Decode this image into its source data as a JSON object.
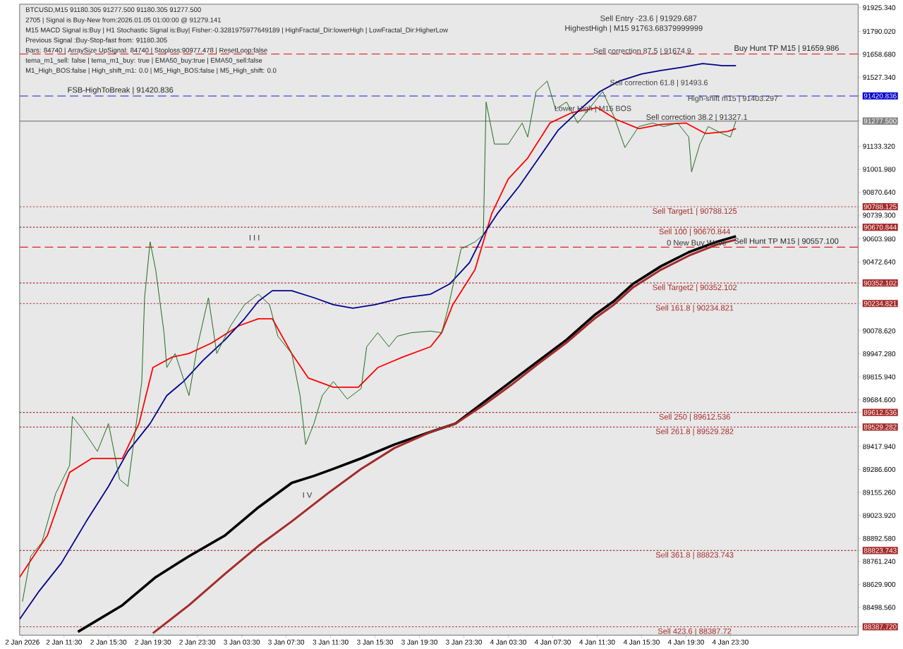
{
  "chart_data": {
    "type": "line",
    "annotations": [
      "BTCUSD,M15  91180.305 91277.500 91180.305 91277.500",
      "2705 | Signal is Buy-New from:2026.01.05 01:00:00 @ 91279.141",
      "M15 MACD Signal is:Buy | H1 Stochastic Signal is:Buy| Fisher:-0.3281975977649189 | HighFractal_Dir:lowerHigh | LowFractal_Dir:HigherLow",
      "Previous Signal :Buy-Stop-fast from: 91180.305",
      "Bars: 84740 | ArraySize UpSignal: 84740 | Stoploss:90977.478 | ResetLoop:false",
      "tema_m1_sell: false | tema_m1_buy: true | EMA50_buy:true | EMA50_sell:false",
      "M1_High_BOS:false | High_shift_m1: 0.0 | M5_High_BOS:false | M5_High_shift: 0.0",
      "Sell Entry -23.6 | 91929.687",
      "HighestHigh | M15 91763.68379999999",
      "0 New Buy Wave",
      "I I I",
      "I V",
      {
        "text": "Sell correction 87.5 | 91674.9",
        "x": "2026-01-04T11:00",
        "y": 91674.9
      },
      {
        "text": "Sell correction 61.8 | 91493.6",
        "x": "2026-01-04T12:30",
        "y": 91493.6
      },
      "Sell correction 38.2 | 91327.1",
      {
        "text": "Lower High | M15 BOS",
        "x": "2026-01-04T07:30",
        "y": 91346
      },
      {
        "text": "High-shift m15 | 91403.297",
        "x": "2026-01-04T19:30",
        "y": 91403.297
      }
    ],
    "xlim": [
      "2026-01-02T07:30",
      "2026-01-05T11:00"
    ],
    "ylim": [
      88340,
      91945
    ],
    "xticks": [
      {
        "value": "2026-01-02T07:45",
        "label": "2 Jan 2026"
      },
      {
        "value": "2026-01-02T11:30",
        "label": "2 Jan 11:30"
      },
      {
        "value": "2026-01-02T15:30",
        "label": "2 Jan 15:30"
      },
      {
        "value": "2026-01-02T19:30",
        "label": "2 Jan 19:30"
      },
      {
        "value": "2026-01-02T23:30",
        "label": "2 Jan 23:30"
      },
      {
        "value": "2026-01-03T03:30",
        "label": "3 Jan 03:30"
      },
      {
        "value": "2026-01-03T07:30",
        "label": "3 Jan 07:30"
      },
      {
        "value": "2026-01-03T11:30",
        "label": "3 Jan 11:30"
      },
      {
        "value": "2026-01-03T15:30",
        "label": "3 Jan 15:30"
      },
      {
        "value": "2026-01-03T19:30",
        "label": "3 Jan 19:30"
      },
      {
        "value": "2026-01-03T23:30",
        "label": "3 Jan 23:30"
      },
      {
        "value": "2026-01-04T03:30",
        "label": "4 Jan 03:30"
      },
      {
        "value": "2026-01-04T07:30",
        "label": "4 Jan 07:30"
      },
      {
        "value": "2026-01-04T11:30",
        "label": "4 Jan 11:30"
      },
      {
        "value": "2026-01-04T15:30",
        "label": "4 Jan 15:30"
      },
      {
        "value": "2026-01-04T19:30",
        "label": "4 Jan 19:30"
      },
      {
        "value": "2026-01-04T23:30",
        "label": "4 Jan 23:30"
      }
    ],
    "yticks": [
      {
        "value": 91925.34,
        "label": "91925.340"
      },
      {
        "value": 91790.02,
        "label": "91790.020"
      },
      {
        "value": 91658.68,
        "label": "91658.680"
      },
      {
        "value": 91527.34,
        "label": "91527.340"
      },
      {
        "value": 91420.836,
        "label": "91420.836"
      },
      {
        "value": 91277.5,
        "label": "91277.500"
      },
      {
        "value": 91133.32,
        "label": "91133.320"
      },
      {
        "value": 91001.98,
        "label": "91001.980"
      },
      {
        "value": 90870.64,
        "label": "90870.640"
      },
      {
        "value": 90788.125,
        "label": "90788.125"
      },
      {
        "value": 90739.3,
        "label": "90739.300"
      },
      {
        "value": 90670.844,
        "label": "90670.844"
      },
      {
        "value": 90603.98,
        "label": "90603.980"
      },
      {
        "value": 90472.64,
        "label": "90472.640"
      },
      {
        "value": 90352.102,
        "label": "90352.102"
      },
      {
        "value": 90234.821,
        "label": "90234.821"
      },
      {
        "value": 90078.62,
        "label": "90078.620"
      },
      {
        "value": 89947.28,
        "label": "89947.280"
      },
      {
        "value": 89815.94,
        "label": "89815.940"
      },
      {
        "value": 89684.6,
        "label": "89684.600"
      },
      {
        "value": 89612.536,
        "label": "89612.536"
      },
      {
        "value": 89529.282,
        "label": "89529.282"
      },
      {
        "value": 89417.94,
        "label": "89417.940"
      },
      {
        "value": 89286.6,
        "label": "89286.600"
      },
      {
        "value": 89155.26,
        "label": "89155.260"
      },
      {
        "value": 89023.92,
        "label": "89023.920"
      },
      {
        "value": 88892.58,
        "label": "88892.580"
      },
      {
        "value": 88823.743,
        "label": "88823.743"
      },
      {
        "value": 88761.24,
        "label": "88761.240"
      },
      {
        "value": 88629.9,
        "label": "88629.900"
      },
      {
        "value": 88498.56,
        "label": "88498.560"
      },
      {
        "value": 88387.72,
        "label": "88387.720"
      }
    ],
    "ref_lines": [
      {
        "axis": "y",
        "value": 91420.836,
        "label": "FSB-HighToBreak | 91420.836",
        "color": "#0000cd",
        "line_style": "dashed"
      },
      {
        "axis": "y",
        "value": 91277.5,
        "color": "#808080",
        "line_style": "solid"
      },
      {
        "axis": "y",
        "value": 91659.986,
        "label": "Buy Hunt TP M15 | 91659.986",
        "color": "#e02020",
        "line_style": "dashed"
      },
      {
        "axis": "y",
        "value": 90557.1,
        "label": "Sell Hunt TP M15 | 90557.100",
        "color": "#e02020",
        "line_style": "dashed"
      },
      {
        "axis": "y",
        "value": 90788.125,
        "label": "Sell Target1 | 90788.125",
        "color": "#a52a2a",
        "line_style": "dotted"
      },
      {
        "axis": "y",
        "value": 90670.844,
        "label": "Sell 100 | 90670.844",
        "color": "#a52a2a",
        "line_style": "dotted"
      },
      {
        "axis": "y",
        "value": 90352.102,
        "label": "Sell Target2 | 90352.102",
        "color": "#a52a2a",
        "line_style": "dotted"
      },
      {
        "axis": "y",
        "value": 90234.821,
        "label": "Sell 161.8 | 90234.821",
        "color": "#a52a2a",
        "line_style": "dotted"
      },
      {
        "axis": "y",
        "value": 89612.536,
        "label": "Sell 250 | 89612.536",
        "color": "#a52a2a",
        "line_style": "dotted"
      },
      {
        "axis": "y",
        "value": 89529.282,
        "label": "Sell 261.8 | 89529.282",
        "color": "#a52a2a",
        "line_style": "dotted"
      },
      {
        "axis": "y",
        "value": 88823.743,
        "label": "Sell 361.8 | 88823.743",
        "color": "#a52a2a",
        "line_style": "dotted"
      },
      {
        "axis": "y",
        "value": 88387.72,
        "label": "Sell 423.6 | 88387.72",
        "color": "#a52a2a",
        "line_style": "dotted"
      }
    ],
    "series": [
      {
        "color": "#1e6b1e",
        "x": [
          "2026-01-02T07:45",
          "2026-01-02T08:30",
          "2026-01-02T09:30",
          "2026-01-02T10:45",
          "2026-01-02T12:00",
          "2026-01-02T12:15",
          "2026-01-02T13:15",
          "2026-01-02T14:30",
          "2026-01-02T15:30",
          "2026-01-02T16:30",
          "2026-01-02T17:15",
          "2026-01-02T18:00",
          "2026-01-02T18:30",
          "2026-01-02T18:45",
          "2026-01-02T19:15",
          "2026-01-02T19:45",
          "2026-01-02T20:30",
          "2026-01-02T20:45",
          "2026-01-02T21:30",
          "2026-01-02T22:45",
          "2026-01-02T23:30",
          "2026-01-03T00:30",
          "2026-01-03T01:15",
          "2026-01-03T02:30",
          "2026-01-03T03:45",
          "2026-01-03T05:00",
          "2026-01-03T06:00",
          "2026-01-03T06:45",
          "2026-01-03T08:00",
          "2026-01-03T08:45",
          "2026-01-03T09:15",
          "2026-01-03T10:00",
          "2026-01-03T10:45",
          "2026-01-03T11:45",
          "2026-01-03T13:00",
          "2026-01-03T14:15",
          "2026-01-03T14:45",
          "2026-01-03T15:45",
          "2026-01-03T16:45",
          "2026-01-03T17:30",
          "2026-01-03T18:45",
          "2026-01-03T20:30",
          "2026-01-03T21:30",
          "2026-01-03T22:00",
          "2026-01-03T23:15",
          "2026-01-04T00:30",
          "2026-01-04T01:15",
          "2026-01-04T01:30",
          "2026-01-04T02:15",
          "2026-01-04T03:30",
          "2026-01-04T04:45",
          "2026-01-04T05:15",
          "2026-01-04T06:00",
          "2026-01-04T07:00",
          "2026-01-04T07:45",
          "2026-01-04T08:45",
          "2026-01-04T09:45",
          "2026-01-04T10:45",
          "2026-01-04T12:00",
          "2026-01-04T13:00",
          "2026-01-04T14:00",
          "2026-01-04T15:15",
          "2026-01-04T16:30",
          "2026-01-04T17:30",
          "2026-01-04T18:45",
          "2026-01-04T19:45",
          "2026-01-04T20:00",
          "2026-01-04T20:45",
          "2026-01-04T21:30",
          "2026-01-04T22:45",
          "2026-01-04T23:30",
          "2026-01-05T00:00"
        ],
        "values": [
          88531,
          88791,
          88870,
          89150,
          89310,
          89589,
          89509,
          89390,
          89549,
          89230,
          89190,
          89549,
          89789,
          90268,
          90587,
          90428,
          90068,
          89869,
          89949,
          89709,
          89988,
          90268,
          89949,
          90108,
          90228,
          90288,
          90228,
          90048,
          89949,
          89709,
          89429,
          89549,
          89709,
          89789,
          89689,
          89749,
          89988,
          90068,
          89988,
          90048,
          90068,
          90077,
          90068,
          90188,
          90547,
          90587,
          90627,
          91386,
          91146,
          91146,
          91266,
          91186,
          91446,
          91506,
          91346,
          91386,
          91266,
          91346,
          91446,
          91306,
          91126,
          91246,
          91266,
          91246,
          91266,
          91186,
          90987,
          91146,
          91246,
          91206,
          91186,
          91278
        ]
      },
      {
        "color": "#ff0000",
        "x": [
          "2026-01-02T07:30",
          "2026-01-02T10:00",
          "2026-01-02T12:00",
          "2026-01-02T14:00",
          "2026-01-02T16:45",
          "2026-01-02T18:15",
          "2026-01-02T19:30",
          "2026-01-02T21:15",
          "2026-01-02T22:45",
          "2026-01-03T00:45",
          "2026-01-03T03:15",
          "2026-01-03T05:00",
          "2026-01-03T06:15",
          "2026-01-03T08:00",
          "2026-01-03T09:30",
          "2026-01-03T11:45",
          "2026-01-03T14:00",
          "2026-01-03T15:45",
          "2026-01-03T18:00",
          "2026-01-03T20:30",
          "2026-01-03T21:30",
          "2026-01-03T22:30",
          "2026-01-04T00:30",
          "2026-01-04T02:00",
          "2026-01-04T03:30",
          "2026-01-04T05:15",
          "2026-01-04T07:15",
          "2026-01-04T09:15",
          "2026-01-04T11:30",
          "2026-01-04T13:15",
          "2026-01-04T15:15",
          "2026-01-04T17:15",
          "2026-01-04T19:30",
          "2026-01-04T21:15",
          "2026-01-04T23:15",
          "2026-01-05T00:00"
        ],
        "values": [
          88671,
          88910,
          89270,
          89350,
          89350,
          89549,
          89869,
          89929,
          89949,
          90008,
          90108,
          90148,
          90148,
          89949,
          89809,
          89757,
          89757,
          89869,
          89929,
          89988,
          90068,
          90228,
          90428,
          90747,
          90947,
          91066,
          91266,
          91326,
          91354,
          91286,
          91234,
          91258,
          91266,
          91206,
          91218,
          91234
        ]
      },
      {
        "color": "#00008b",
        "x": [
          "2026-01-02T07:30",
          "2026-01-02T09:15",
          "2026-01-02T11:15",
          "2026-01-02T13:30",
          "2026-01-02T15:30",
          "2026-01-02T17:15",
          "2026-01-02T19:15",
          "2026-01-02T20:45",
          "2026-01-02T22:15",
          "2026-01-03T00:00",
          "2026-01-03T02:00",
          "2026-01-03T03:45",
          "2026-01-03T05:00",
          "2026-01-03T06:15",
          "2026-01-03T08:00",
          "2026-01-03T10:00",
          "2026-01-03T11:45",
          "2026-01-03T13:30",
          "2026-01-03T15:30",
          "2026-01-03T18:00",
          "2026-01-03T20:30",
          "2026-01-03T22:15",
          "2026-01-04T00:00",
          "2026-01-04T01:15",
          "2026-01-04T02:30",
          "2026-01-04T04:30",
          "2026-01-04T06:15",
          "2026-01-04T08:00",
          "2026-01-04T10:00",
          "2026-01-04T11:45",
          "2026-01-04T13:30",
          "2026-01-04T15:30",
          "2026-01-04T17:15",
          "2026-01-04T19:15",
          "2026-01-04T21:00",
          "2026-01-04T22:45",
          "2026-01-05T00:00"
        ],
        "values": [
          88431,
          88591,
          88751,
          88990,
          89190,
          89390,
          89549,
          89709,
          89789,
          89909,
          90028,
          90148,
          90248,
          90308,
          90308,
          90268,
          90228,
          90208,
          90228,
          90268,
          90288,
          90348,
          90468,
          90627,
          90747,
          90907,
          91066,
          91226,
          91346,
          91446,
          91506,
          91546,
          91566,
          91586,
          91606,
          91594,
          91594
        ]
      },
      {
        "color": "#000000",
        "x": [
          "2026-01-02T12:45",
          "2026-01-02T16:45",
          "2026-01-02T19:45",
          "2026-01-02T22:45",
          "2026-01-03T02:00",
          "2026-01-03T05:00",
          "2026-01-03T08:00",
          "2026-01-03T10:00",
          "2026-01-03T11:45",
          "2026-01-03T14:15",
          "2026-01-03T17:15",
          "2026-01-03T20:30",
          "2026-01-03T22:45",
          "2026-01-04T01:15",
          "2026-01-04T03:45",
          "2026-01-04T06:15",
          "2026-01-04T08:45",
          "2026-01-04T11:15",
          "2026-01-04T13:00",
          "2026-01-04T14:45",
          "2026-01-04T17:15",
          "2026-01-04T19:45",
          "2026-01-04T22:15",
          "2026-01-05T00:00"
        ],
        "values": [
          88359,
          88511,
          88671,
          88791,
          88910,
          89070,
          89210,
          89250,
          89290,
          89350,
          89429,
          89501,
          89549,
          89669,
          89789,
          89909,
          90028,
          90168,
          90248,
          90348,
          90448,
          90528,
          90587,
          90619
        ]
      },
      {
        "color": "#a52a2a",
        "x": [
          "2026-01-02T19:30",
          "2026-01-02T22:45",
          "2026-01-03T02:00",
          "2026-01-03T05:00",
          "2026-01-03T08:00",
          "2026-01-03T11:15",
          "2026-01-03T14:15",
          "2026-01-03T17:15",
          "2026-01-03T20:30",
          "2026-01-03T22:45",
          "2026-01-04T01:15",
          "2026-01-04T03:45",
          "2026-01-04T06:15",
          "2026-01-04T08:45",
          "2026-01-04T11:15",
          "2026-01-04T13:00",
          "2026-01-04T14:45",
          "2026-01-04T17:15",
          "2026-01-04T19:45",
          "2026-01-04T22:15",
          "2026-01-05T00:00"
        ],
        "values": [
          88351,
          88511,
          88691,
          88850,
          88990,
          89150,
          89290,
          89409,
          89501,
          89549,
          89653,
          89769,
          89893,
          90012,
          90148,
          90228,
          90328,
          90428,
          90508,
          90571,
          90599
        ]
      }
    ]
  }
}
